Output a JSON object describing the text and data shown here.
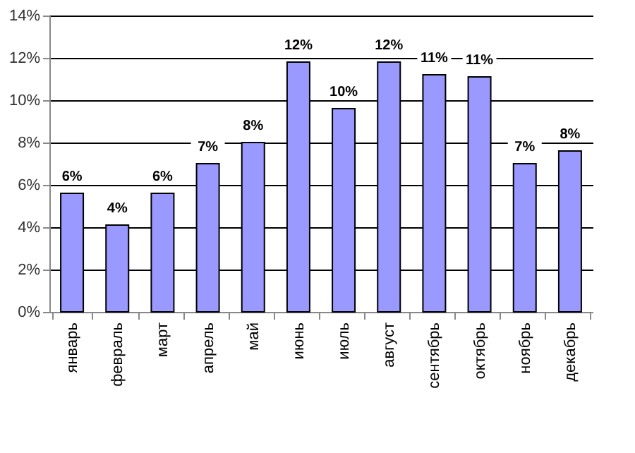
{
  "chart_data": {
    "type": "bar",
    "categories": [
      "январь",
      "февраль",
      "март",
      "апрель",
      "май",
      "июнь",
      "июль",
      "август",
      "сентябрь",
      "октябрь",
      "ноябрь",
      "декабрь"
    ],
    "values": [
      5.6,
      4.1,
      5.6,
      7.0,
      8.0,
      11.8,
      9.6,
      11.8,
      11.2,
      11.1,
      7.0,
      7.6
    ],
    "value_labels": [
      "6%",
      "4%",
      "6%",
      "7%",
      "8%",
      "12%",
      "10%",
      "12%",
      "11%",
      "11%",
      "7%",
      "8%"
    ],
    "color": "#9999ff",
    "ylim": [
      0,
      14
    ],
    "yticks": [
      {
        "value": 0,
        "label": "0%"
      },
      {
        "value": 2,
        "label": "2%"
      },
      {
        "value": 4,
        "label": "4%"
      },
      {
        "value": 6,
        "label": "6%"
      },
      {
        "value": 8,
        "label": "8%"
      },
      {
        "value": 10,
        "label": "10%"
      },
      {
        "value": 12,
        "label": "12%"
      },
      {
        "value": 14,
        "label": "14%"
      }
    ],
    "grid": "y"
  }
}
